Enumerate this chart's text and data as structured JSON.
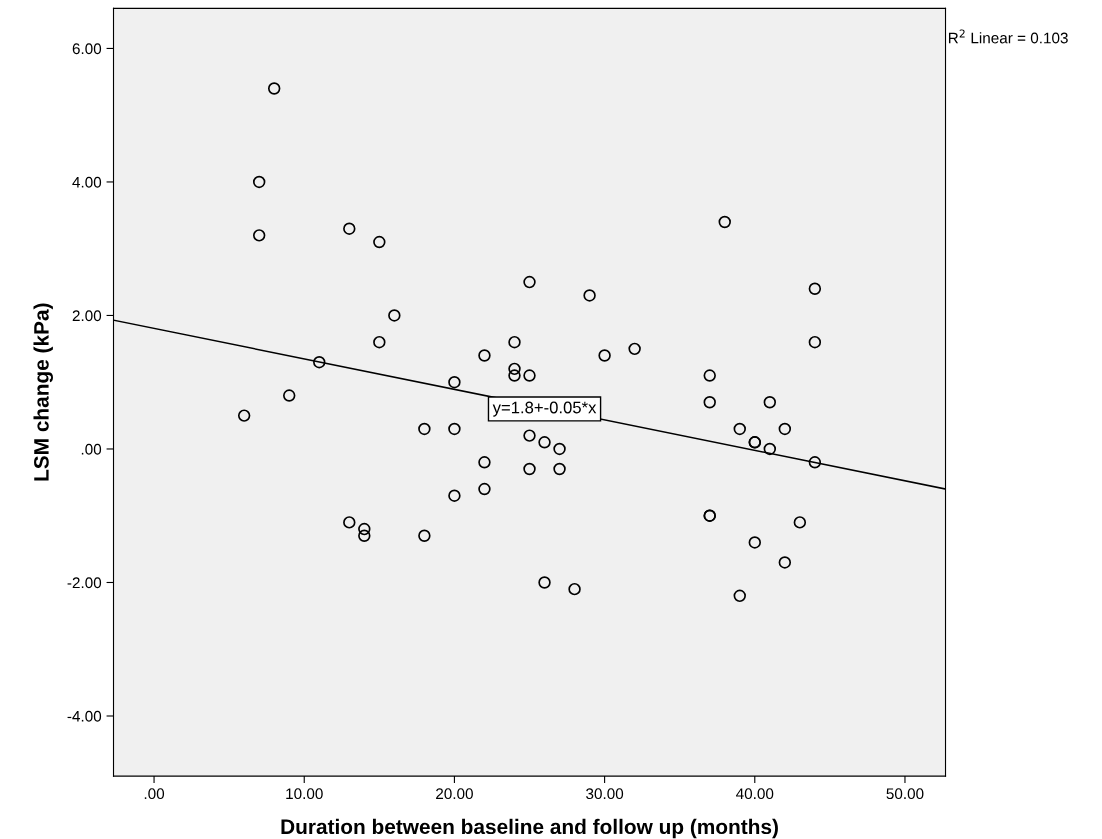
{
  "chart_data": {
    "type": "scatter",
    "xlabel": "Duration between baseline and follow up (months)",
    "ylabel": "LSM change (kPa)",
    "xlim": [
      -2.7,
      52.7
    ],
    "ylim": [
      -4.9,
      6.6
    ],
    "xticks": [
      {
        "value": 0,
        "label": ".00"
      },
      {
        "value": 10,
        "label": "10.00"
      },
      {
        "value": 20,
        "label": "20.00"
      },
      {
        "value": 30,
        "label": "30.00"
      },
      {
        "value": 40,
        "label": "40.00"
      },
      {
        "value": 50,
        "label": "50.00"
      }
    ],
    "yticks": [
      {
        "value": -4,
        "label": "-4.00"
      },
      {
        "value": -2,
        "label": "-2.00"
      },
      {
        "value": 0,
        "label": ".00"
      },
      {
        "value": 2,
        "label": "2.00"
      },
      {
        "value": 4,
        "label": "4.00"
      },
      {
        "value": 6,
        "label": "6.00"
      }
    ],
    "grid": false,
    "marker": "circle",
    "series": [
      {
        "color": "#000000",
        "x": [
          8,
          7,
          7,
          13,
          15,
          16,
          15,
          11,
          9,
          6,
          20,
          22,
          24,
          24,
          24,
          25,
          25,
          29,
          44,
          44,
          30,
          32,
          37,
          37,
          41,
          39,
          42,
          40,
          40,
          41,
          44,
          18,
          20,
          25,
          26,
          27,
          22,
          25,
          27,
          22,
          20,
          18,
          13,
          14,
          14,
          37,
          37,
          43,
          40,
          42,
          39,
          26,
          28,
          38
        ],
        "values": [
          5.4,
          4.0,
          3.2,
          3.3,
          3.1,
          2.0,
          1.6,
          1.3,
          0.8,
          0.5,
          1.0,
          1.4,
          1.6,
          1.2,
          1.1,
          1.1,
          2.5,
          2.3,
          2.4,
          1.6,
          1.4,
          1.5,
          1.1,
          0.7,
          0.7,
          0.3,
          0.3,
          0.1,
          0.1,
          0.0,
          -0.2,
          0.3,
          0.3,
          0.2,
          0.1,
          0.0,
          -0.2,
          -0.3,
          -0.3,
          -0.6,
          -0.7,
          -1.3,
          -1.1,
          -1.2,
          -1.3,
          -1.0,
          -1.0,
          -1.1,
          -1.4,
          -1.7,
          -2.2,
          -2.0,
          -2.1,
          3.4
        ]
      },
      {
        "type": "line",
        "color": "#000000",
        "x": [
          -2.7,
          52.7
        ],
        "values": [
          1.93,
          -0.6
        ],
        "marker": "none",
        "line_style": "solid"
      }
    ],
    "annotations": [
      {
        "text": "y=1.8+-0.05*x",
        "x": 26,
        "y": 0.6
      },
      "R$^{2}$ Linear = 0.103"
    ]
  }
}
